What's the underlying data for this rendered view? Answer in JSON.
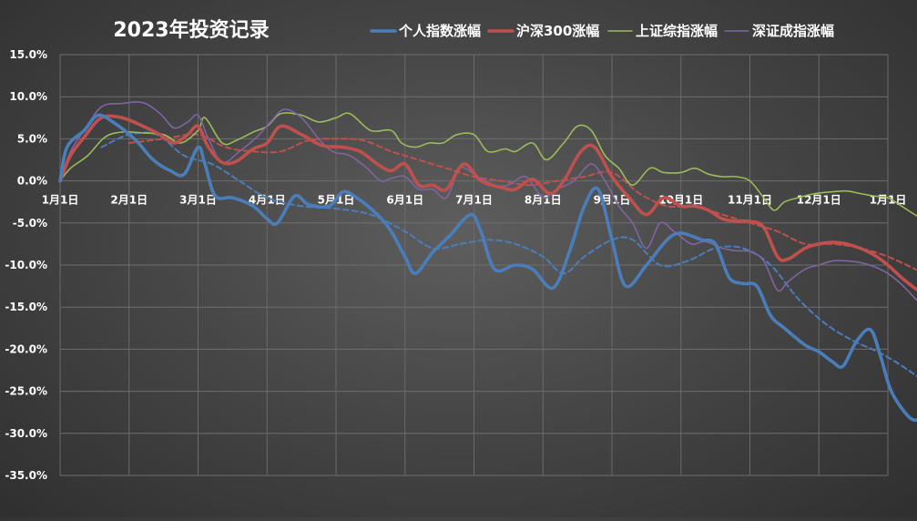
{
  "chart_data": {
    "type": "line",
    "title": "2023年投资记录",
    "xlabel": "",
    "ylabel": "",
    "ylim": [
      -35,
      15
    ],
    "y_unit": "%",
    "y_ticks": [
      "15.0%",
      "10.0%",
      "5.0%",
      "0.0%",
      "-5.0%",
      "-10.0%",
      "-15.0%",
      "-20.0%",
      "-25.0%",
      "-30.0%",
      "-35.0%"
    ],
    "x_ticks": [
      "1月1日",
      "2月1日",
      "3月1日",
      "4月1日",
      "5月1日",
      "6月1日",
      "7月1日",
      "8月1日",
      "9月1日",
      "10月1日",
      "11月1日",
      "12月1日",
      "1月1日"
    ],
    "grid": true,
    "legend_position": "top",
    "series": [
      {
        "name": "个人指数涨幅",
        "color": "#4a7ebb",
        "values": [
          [
            0,
            0
          ],
          [
            0.1,
            4
          ],
          [
            0.35,
            6
          ],
          [
            0.55,
            7.8
          ],
          [
            0.8,
            6.8
          ],
          [
            1.1,
            4.8
          ],
          [
            1.35,
            2.5
          ],
          [
            1.6,
            1.2
          ],
          [
            1.8,
            0.8
          ],
          [
            2.0,
            4
          ],
          [
            2.1,
            2
          ],
          [
            2.25,
            -1.8
          ],
          [
            2.5,
            -2
          ],
          [
            2.8,
            -3
          ],
          [
            3.0,
            -4.5
          ],
          [
            3.15,
            -5
          ],
          [
            3.4,
            -1.8
          ],
          [
            3.6,
            -2.8
          ],
          [
            3.9,
            -3
          ],
          [
            4.1,
            -1.3
          ],
          [
            4.3,
            -2
          ],
          [
            4.6,
            -4
          ],
          [
            4.8,
            -6
          ],
          [
            5.0,
            -9
          ],
          [
            5.15,
            -11
          ],
          [
            5.4,
            -8.5
          ],
          [
            5.65,
            -6.5
          ],
          [
            5.95,
            -4
          ],
          [
            6.1,
            -6
          ],
          [
            6.3,
            -10.5
          ],
          [
            6.6,
            -10
          ],
          [
            6.85,
            -10.5
          ],
          [
            7.15,
            -12.7
          ],
          [
            7.4,
            -8
          ],
          [
            7.6,
            -3
          ],
          [
            7.8,
            -1
          ],
          [
            8.0,
            -7
          ],
          [
            8.2,
            -12.5
          ],
          [
            8.5,
            -10
          ],
          [
            8.8,
            -7
          ],
          [
            9.0,
            -6.2
          ],
          [
            9.3,
            -7
          ],
          [
            9.5,
            -7.5
          ],
          [
            9.7,
            -11.5
          ],
          [
            9.9,
            -12.2
          ],
          [
            10.1,
            -12.5
          ],
          [
            10.3,
            -16
          ],
          [
            10.5,
            -17.5
          ],
          [
            10.8,
            -19.5
          ],
          [
            11.0,
            -20.3
          ],
          [
            11.2,
            -21.5
          ],
          [
            11.35,
            -22
          ],
          [
            11.55,
            -19
          ],
          [
            11.75,
            -17.7
          ],
          [
            11.9,
            -21
          ],
          [
            12.05,
            -25
          ],
          [
            12.3,
            -28
          ],
          [
            12.45,
            -28.3
          ],
          [
            12.6,
            -27
          ],
          [
            12.8,
            -28
          ],
          [
            12.95,
            -28.7
          ],
          [
            13.1,
            -27
          ],
          [
            13.25,
            -25.5
          ]
        ]
      },
      {
        "name": "沪深300涨幅",
        "color": "#c0504d",
        "values": [
          [
            0,
            0
          ],
          [
            0.15,
            3
          ],
          [
            0.35,
            5.2
          ],
          [
            0.6,
            7.5
          ],
          [
            0.9,
            7.5
          ],
          [
            1.2,
            6.5
          ],
          [
            1.45,
            5.5
          ],
          [
            1.65,
            4.5
          ],
          [
            1.85,
            5.5
          ],
          [
            2.0,
            6.5
          ],
          [
            2.15,
            4
          ],
          [
            2.35,
            2.2
          ],
          [
            2.55,
            2.3
          ],
          [
            2.8,
            3.8
          ],
          [
            3.0,
            4.5
          ],
          [
            3.2,
            6.5
          ],
          [
            3.5,
            5.5
          ],
          [
            3.8,
            4.2
          ],
          [
            4.1,
            4
          ],
          [
            4.35,
            3.5
          ],
          [
            4.6,
            2
          ],
          [
            4.8,
            1.2
          ],
          [
            5.0,
            2
          ],
          [
            5.2,
            -0.5
          ],
          [
            5.4,
            -0.5
          ],
          [
            5.6,
            -1
          ],
          [
            5.85,
            2
          ],
          [
            6.1,
            0
          ],
          [
            6.4,
            -0.8
          ],
          [
            6.6,
            -1
          ],
          [
            6.85,
            0.2
          ],
          [
            7.1,
            -1.5
          ],
          [
            7.3,
            0
          ],
          [
            7.55,
            3.5
          ],
          [
            7.75,
            4
          ],
          [
            8.0,
            0.5
          ],
          [
            8.25,
            -2
          ],
          [
            8.5,
            -4
          ],
          [
            8.75,
            -2
          ],
          [
            9.0,
            -3
          ],
          [
            9.2,
            -3
          ],
          [
            9.4,
            -3.5
          ],
          [
            9.6,
            -4.5
          ],
          [
            9.8,
            -4.8
          ],
          [
            10.0,
            -4.8
          ],
          [
            10.2,
            -5.5
          ],
          [
            10.4,
            -9
          ],
          [
            10.55,
            -9.3
          ],
          [
            10.8,
            -8
          ],
          [
            11.0,
            -7.5
          ],
          [
            11.2,
            -7.3
          ],
          [
            11.4,
            -7.5
          ],
          [
            11.6,
            -8
          ],
          [
            11.8,
            -8.8
          ],
          [
            12.0,
            -10
          ],
          [
            12.2,
            -11.5
          ],
          [
            12.4,
            -12.8
          ],
          [
            12.6,
            -13.8
          ],
          [
            12.8,
            -14
          ],
          [
            13.0,
            -13.5
          ],
          [
            13.25,
            -11.5
          ]
        ]
      },
      {
        "name": "上证综指涨幅",
        "color": "#9bbb59",
        "values": [
          [
            0,
            0
          ],
          [
            0.15,
            1.5
          ],
          [
            0.4,
            3
          ],
          [
            0.65,
            5.2
          ],
          [
            0.9,
            5.8
          ],
          [
            1.2,
            5.7
          ],
          [
            1.5,
            5.5
          ],
          [
            1.75,
            4.5
          ],
          [
            2.0,
            6
          ],
          [
            2.1,
            7.5
          ],
          [
            2.35,
            4.5
          ],
          [
            2.55,
            4.8
          ],
          [
            2.8,
            5.8
          ],
          [
            3.0,
            6.5
          ],
          [
            3.2,
            8
          ],
          [
            3.5,
            7.8
          ],
          [
            3.75,
            7
          ],
          [
            4.0,
            7.5
          ],
          [
            4.2,
            8
          ],
          [
            4.5,
            6
          ],
          [
            4.8,
            6
          ],
          [
            4.95,
            4.5
          ],
          [
            5.15,
            4
          ],
          [
            5.35,
            4.5
          ],
          [
            5.55,
            4.5
          ],
          [
            5.75,
            5.5
          ],
          [
            6.0,
            5.5
          ],
          [
            6.2,
            3.5
          ],
          [
            6.45,
            3.8
          ],
          [
            6.6,
            3.5
          ],
          [
            6.85,
            4.5
          ],
          [
            7.05,
            2.5
          ],
          [
            7.3,
            4.5
          ],
          [
            7.5,
            6.5
          ],
          [
            7.7,
            6
          ],
          [
            7.9,
            3
          ],
          [
            8.1,
            1.5
          ],
          [
            8.3,
            -0.5
          ],
          [
            8.55,
            1.5
          ],
          [
            8.75,
            1
          ],
          [
            9.0,
            1
          ],
          [
            9.2,
            1.5
          ],
          [
            9.4,
            0.8
          ],
          [
            9.6,
            0.5
          ],
          [
            9.8,
            0.5
          ],
          [
            10.0,
            0
          ],
          [
            10.2,
            -2
          ],
          [
            10.35,
            -3.5
          ],
          [
            10.5,
            -2.5
          ],
          [
            10.7,
            -2
          ],
          [
            10.95,
            -1.5
          ],
          [
            11.2,
            -1.3
          ],
          [
            11.4,
            -1.2
          ],
          [
            11.6,
            -1.5
          ],
          [
            11.8,
            -1.8
          ],
          [
            12.0,
            -2
          ],
          [
            12.2,
            -3
          ],
          [
            12.45,
            -4.3
          ],
          [
            12.6,
            -4.8
          ],
          [
            12.8,
            -5.5
          ],
          [
            13.0,
            -5.5
          ],
          [
            13.25,
            -3.5
          ]
        ]
      },
      {
        "name": "深证成指涨幅",
        "color": "#8064a2",
        "values": [
          [
            0,
            0
          ],
          [
            0.15,
            3.5
          ],
          [
            0.35,
            6
          ],
          [
            0.6,
            8.8
          ],
          [
            0.9,
            9.2
          ],
          [
            1.2,
            9.3
          ],
          [
            1.45,
            8
          ],
          [
            1.65,
            6.3
          ],
          [
            1.85,
            7
          ],
          [
            2.0,
            7.8
          ],
          [
            2.15,
            5
          ],
          [
            2.35,
            2.2
          ],
          [
            2.6,
            3.5
          ],
          [
            2.85,
            5.2
          ],
          [
            3.05,
            7
          ],
          [
            3.25,
            8.5
          ],
          [
            3.5,
            7.5
          ],
          [
            3.75,
            5
          ],
          [
            3.95,
            3.5
          ],
          [
            4.2,
            3
          ],
          [
            4.45,
            1.5
          ],
          [
            4.65,
            0
          ],
          [
            4.8,
            0.3
          ],
          [
            5.0,
            0.5
          ],
          [
            5.2,
            -1
          ],
          [
            5.4,
            -1
          ],
          [
            5.6,
            -2
          ],
          [
            5.8,
            1.5
          ],
          [
            6.05,
            0.5
          ],
          [
            6.3,
            -0.5
          ],
          [
            6.5,
            -0.5
          ],
          [
            6.75,
            0.5
          ],
          [
            7.0,
            -2
          ],
          [
            7.2,
            -1
          ],
          [
            7.45,
            0
          ],
          [
            7.7,
            2
          ],
          [
            7.9,
            0
          ],
          [
            8.1,
            -3
          ],
          [
            8.3,
            -5
          ],
          [
            8.5,
            -8
          ],
          [
            8.7,
            -5
          ],
          [
            8.9,
            -6
          ],
          [
            9.15,
            -7.5
          ],
          [
            9.35,
            -7.2
          ],
          [
            9.6,
            -8
          ],
          [
            9.8,
            -8.3
          ],
          [
            10.0,
            -8.4
          ],
          [
            10.2,
            -9.5
          ],
          [
            10.4,
            -13
          ],
          [
            10.55,
            -12
          ],
          [
            10.8,
            -10.5
          ],
          [
            11.0,
            -10
          ],
          [
            11.2,
            -9.5
          ],
          [
            11.4,
            -9.5
          ],
          [
            11.6,
            -9.7
          ],
          [
            11.8,
            -10.2
          ],
          [
            12.0,
            -11
          ],
          [
            12.2,
            -12.3
          ],
          [
            12.4,
            -14
          ],
          [
            12.6,
            -15.5
          ],
          [
            12.8,
            -16.3
          ],
          [
            13.0,
            -15.5
          ],
          [
            13.25,
            -13.5
          ]
        ]
      }
    ],
    "trendlines": [
      {
        "series": "个人指数涨幅",
        "color": "#4a7ebb",
        "values": [
          [
            0.6,
            4
          ],
          [
            1.0,
            5.5
          ],
          [
            1.4,
            5.5
          ],
          [
            1.8,
            3
          ],
          [
            2.2,
            2
          ],
          [
            2.6,
            0
          ],
          [
            3.0,
            -2
          ],
          [
            3.5,
            -3
          ],
          [
            4.0,
            -3.3
          ],
          [
            4.5,
            -4
          ],
          [
            5.0,
            -6
          ],
          [
            5.4,
            -8
          ],
          [
            5.8,
            -7.5
          ],
          [
            6.2,
            -7
          ],
          [
            6.6,
            -7.5
          ],
          [
            7.0,
            -9
          ],
          [
            7.3,
            -11
          ],
          [
            7.6,
            -9
          ],
          [
            8.0,
            -7
          ],
          [
            8.3,
            -7
          ],
          [
            8.7,
            -10
          ],
          [
            9.1,
            -9.5
          ],
          [
            9.5,
            -8
          ],
          [
            9.9,
            -8
          ],
          [
            10.3,
            -10
          ],
          [
            10.7,
            -14
          ],
          [
            11.1,
            -17
          ],
          [
            11.5,
            -19
          ],
          [
            11.9,
            -20.5
          ],
          [
            12.3,
            -22.5
          ],
          [
            12.7,
            -25
          ],
          [
            13.0,
            -27.3
          ],
          [
            13.25,
            -27.5
          ]
        ]
      },
      {
        "series": "沪深300涨幅",
        "color": "#c0504d",
        "values": [
          [
            1.0,
            4.5
          ],
          [
            1.5,
            5
          ],
          [
            2.0,
            5.5
          ],
          [
            2.4,
            4
          ],
          [
            2.8,
            3.5
          ],
          [
            3.2,
            3.5
          ],
          [
            3.6,
            4.8
          ],
          [
            4.0,
            5
          ],
          [
            4.4,
            4.8
          ],
          [
            4.8,
            3.5
          ],
          [
            5.2,
            2.5
          ],
          [
            5.6,
            1.5
          ],
          [
            6.0,
            0.5
          ],
          [
            6.4,
            0
          ],
          [
            6.8,
            -0.5
          ],
          [
            7.2,
            0
          ],
          [
            7.6,
            0.5
          ],
          [
            8.0,
            1
          ],
          [
            8.4,
            -1.5
          ],
          [
            8.8,
            -3
          ],
          [
            9.2,
            -3
          ],
          [
            9.6,
            -4
          ],
          [
            10.0,
            -5
          ],
          [
            10.4,
            -6
          ],
          [
            10.8,
            -7.5
          ],
          [
            11.2,
            -7.5
          ],
          [
            11.6,
            -8
          ],
          [
            12.0,
            -9
          ],
          [
            12.4,
            -10.5
          ],
          [
            12.8,
            -12
          ],
          [
            13.0,
            -12.5
          ],
          [
            13.25,
            -12.8
          ]
        ]
      }
    ]
  }
}
